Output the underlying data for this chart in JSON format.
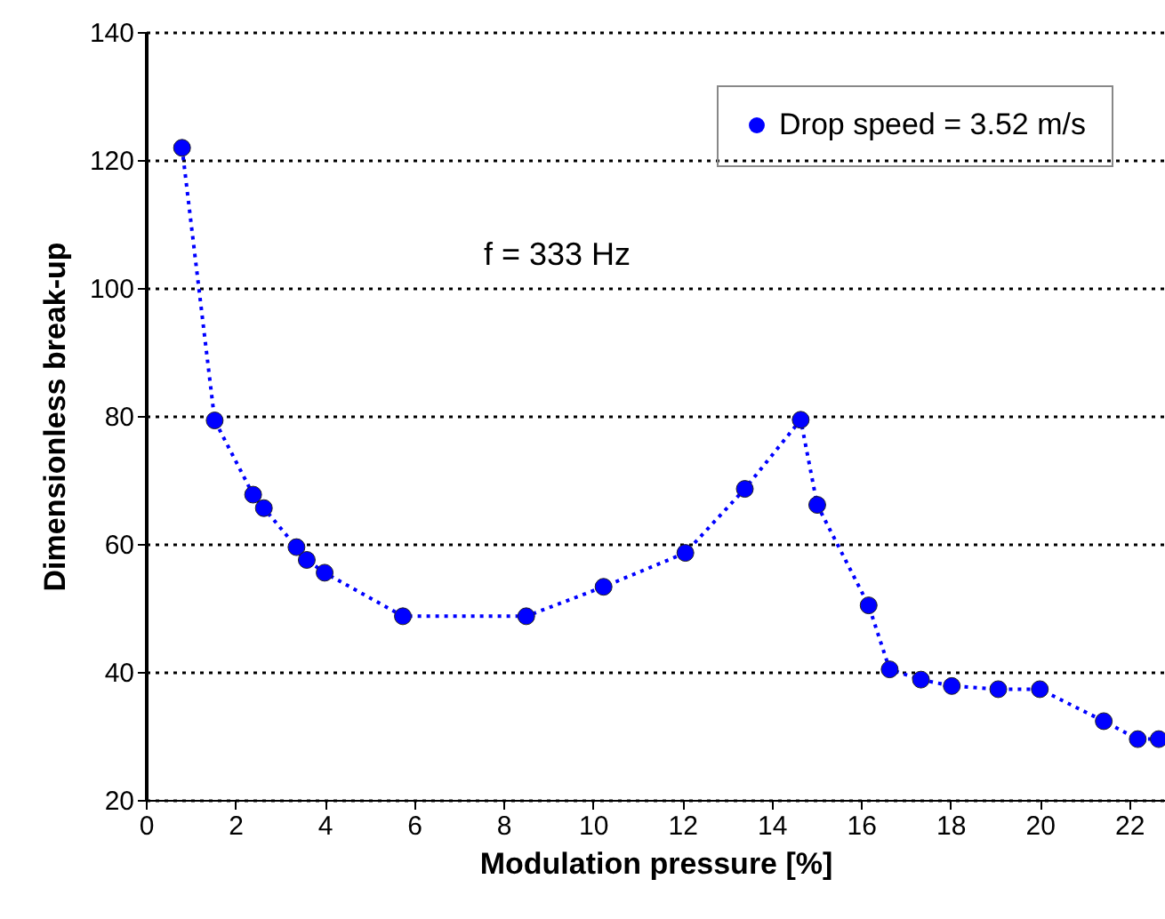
{
  "chart_data": {
    "type": "line",
    "xlabel": "Modulation pressure  [%]",
    "ylabel": "Dimensionless break-up",
    "annotations": [
      "f = 333 Hz"
    ],
    "x": [
      0.81,
      1.54,
      2.4,
      2.64,
      3.37,
      3.6,
      4.0,
      5.75,
      8.51,
      10.24,
      12.07,
      13.4,
      14.65,
      15.02,
      16.17,
      16.64,
      17.34,
      18.03,
      19.07,
      20.0,
      21.43,
      22.19,
      22.66
    ],
    "series": [
      {
        "name": "Drop speed = 3.52 m/s",
        "color": "#0000ff",
        "values": [
          121.9,
          79.3,
          67.7,
          65.6,
          59.5,
          57.5,
          55.5,
          48.7,
          48.7,
          53.3,
          58.6,
          68.6,
          79.4,
          66.1,
          50.4,
          40.4,
          38.8,
          37.8,
          37.3,
          37.3,
          32.3,
          29.5,
          29.5
        ]
      }
    ],
    "xlim": [
      0,
      22.8
    ],
    "xticks": [
      0,
      2,
      4,
      6,
      8,
      10,
      12,
      14,
      16,
      18,
      20,
      22
    ],
    "ylim": [
      20,
      140
    ],
    "yticks": [
      20,
      40,
      60,
      80,
      100,
      120,
      140
    ],
    "grid": "y",
    "legend": "top right",
    "marker": "circle",
    "line_style": "dotted"
  }
}
